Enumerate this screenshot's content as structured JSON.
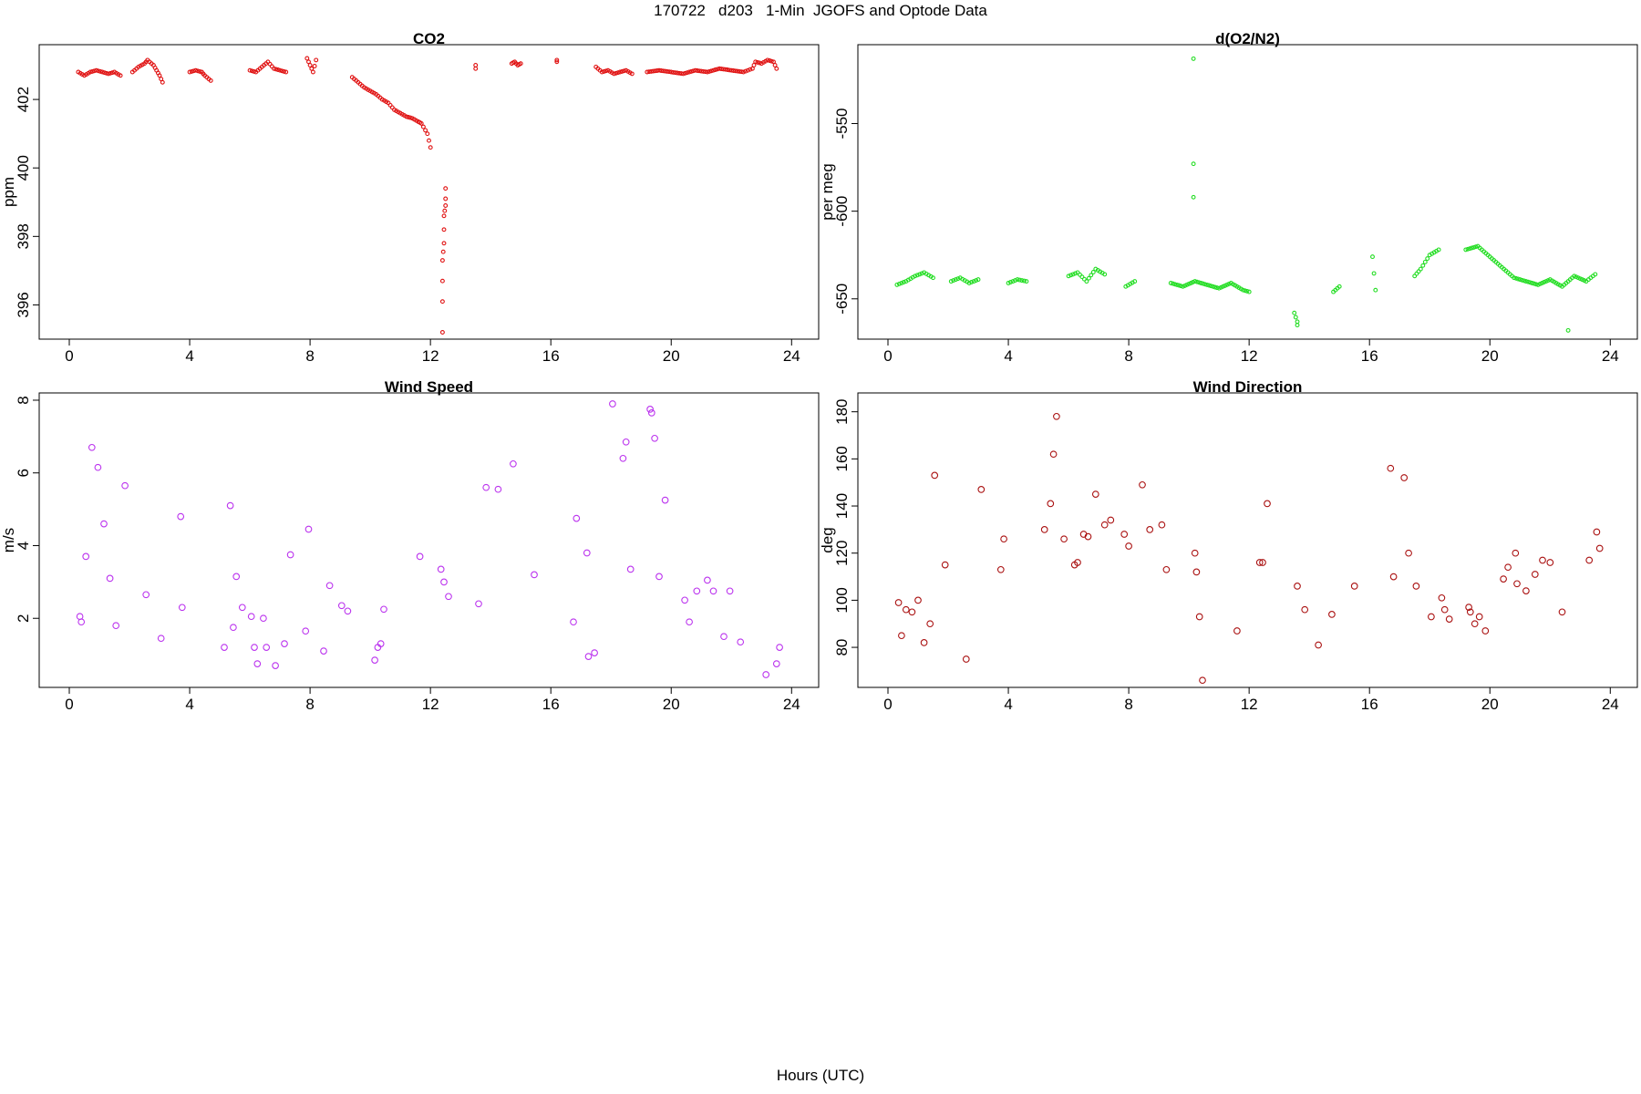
{
  "figure": {
    "title": "170722   d203   1-Min  JGOFS and Optode Data",
    "xlabel": "Hours (UTC)"
  },
  "chart_data": [
    {
      "id": "co2",
      "type": "scatter",
      "title": "CO2",
      "xlabel": "",
      "ylabel": "ppm",
      "xlim": [
        -1,
        24.9
      ],
      "ylim": [
        395.0,
        403.6
      ],
      "xticks": [
        0,
        4,
        8,
        12,
        16,
        20,
        24
      ],
      "yticks": [
        396,
        398,
        400,
        402
      ],
      "grid": false,
      "marker_color": "#e01010",
      "segments": [
        {
          "x": [
            0.3,
            0.5,
            0.7,
            0.9,
            1.1,
            1.3,
            1.5,
            1.7
          ],
          "y": [
            402.8,
            402.7,
            402.8,
            402.85,
            402.8,
            402.75,
            402.8,
            402.7
          ]
        },
        {
          "x": [
            2.1,
            2.3,
            2.5,
            2.6,
            2.8,
            2.9,
            3.0,
            3.1
          ],
          "y": [
            402.8,
            402.95,
            403.05,
            403.15,
            403.0,
            402.85,
            402.7,
            402.5
          ]
        },
        {
          "x": [
            4.0,
            4.2,
            4.4,
            4.5,
            4.7
          ],
          "y": [
            402.8,
            402.85,
            402.8,
            402.7,
            402.55
          ]
        },
        {
          "x": [
            6.0,
            6.2,
            6.4,
            6.6,
            6.8,
            7.0,
            7.2
          ],
          "y": [
            402.85,
            402.8,
            402.95,
            403.1,
            402.9,
            402.85,
            402.8
          ]
        },
        {
          "x": [
            7.9,
            8.0,
            8.1,
            8.2
          ],
          "y": [
            403.2,
            403.0,
            402.8,
            403.15
          ]
        },
        {
          "x": [
            9.4,
            9.6,
            9.8,
            10.0,
            10.2,
            10.4,
            10.6,
            10.8,
            11.0,
            11.2,
            11.4,
            11.6,
            11.7,
            11.9,
            12.0
          ],
          "y": [
            402.65,
            402.5,
            402.35,
            402.25,
            402.15,
            402.0,
            401.9,
            401.7,
            401.6,
            401.5,
            401.45,
            401.35,
            401.3,
            401.0,
            400.6
          ]
        },
        {
          "x": [
            12.4,
            12.4,
            12.4,
            12.4,
            12.45,
            12.45,
            12.45,
            12.5,
            12.5,
            12.5
          ],
          "y": [
            395.2,
            396.1,
            396.7,
            397.3,
            397.8,
            398.2,
            398.6,
            398.9,
            399.1,
            399.4
          ]
        },
        {
          "x": [
            13.5,
            13.5
          ],
          "y": [
            403.0,
            402.9
          ]
        },
        {
          "x": [
            14.7,
            14.8,
            14.9,
            15.0
          ],
          "y": [
            403.05,
            403.1,
            403.0,
            403.05
          ]
        },
        {
          "x": [
            16.2,
            16.2
          ],
          "y": [
            403.15,
            403.1
          ]
        },
        {
          "x": [
            17.5,
            17.7,
            17.9,
            18.1,
            18.3,
            18.5,
            18.7
          ],
          "y": [
            402.95,
            402.8,
            402.85,
            402.75,
            402.8,
            402.85,
            402.75
          ]
        },
        {
          "x": [
            19.2,
            19.6,
            20.0,
            20.4,
            20.8,
            21.2,
            21.6,
            22.0,
            22.4,
            22.7,
            22.8,
            23.0,
            23.2,
            23.4,
            23.5
          ],
          "y": [
            402.8,
            402.85,
            402.8,
            402.75,
            402.85,
            402.8,
            402.9,
            402.85,
            402.8,
            402.9,
            403.1,
            403.05,
            403.15,
            403.1,
            402.9
          ]
        }
      ]
    },
    {
      "id": "o2n2",
      "type": "scatter",
      "title": "d(O2/N2)",
      "xlabel": "",
      "ylabel": "per meg",
      "xlim": [
        -1,
        24.9
      ],
      "ylim": [
        -673,
        -505
      ],
      "xticks": [
        0,
        4,
        8,
        12,
        16,
        20,
        24
      ],
      "yticks": [
        -550,
        -600,
        -650
      ],
      "grid": false,
      "marker_color": "#22dd22",
      "segments": [
        {
          "x": [
            0.3,
            0.6,
            0.9,
            1.2,
            1.5
          ],
          "y": [
            -642,
            -640,
            -637,
            -635,
            -638
          ]
        },
        {
          "x": [
            2.1,
            2.4,
            2.7,
            3.0
          ],
          "y": [
            -640,
            -638,
            -641,
            -639
          ]
        },
        {
          "x": [
            4.0,
            4.3,
            4.6
          ],
          "y": [
            -641,
            -639,
            -640
          ]
        },
        {
          "x": [
            6.0,
            6.3,
            6.6,
            6.9,
            7.2
          ],
          "y": [
            -637,
            -635,
            -640,
            -633,
            -636
          ]
        },
        {
          "x": [
            7.9,
            8.2
          ],
          "y": [
            -643,
            -640
          ]
        },
        {
          "x": [
            9.4,
            9.8,
            10.2,
            10.6,
            11.0,
            11.4,
            11.8,
            12.0
          ],
          "y": [
            -641,
            -643,
            -640,
            -642,
            -644,
            -641,
            -645,
            -646
          ]
        },
        {
          "x": [
            13.5,
            13.6
          ],
          "y": [
            -658,
            -663
          ]
        },
        {
          "x": [
            14.8,
            15.0
          ],
          "y": [
            -646,
            -643
          ]
        },
        {
          "x": [
            16.1,
            16.2
          ],
          "y": [
            -626,
            -645
          ]
        },
        {
          "x": [
            17.5,
            17.7,
            18.0,
            18.3
          ],
          "y": [
            -637,
            -633,
            -625,
            -622
          ]
        },
        {
          "x": [
            19.2,
            19.6,
            20.0,
            20.4,
            20.8,
            21.2,
            21.6,
            22.0,
            22.4,
            22.8,
            23.2,
            23.5
          ],
          "y": [
            -622,
            -620,
            -626,
            -632,
            -638,
            -640,
            -642,
            -639,
            -643,
            -637,
            -640,
            -636
          ]
        }
      ],
      "outliers": {
        "x": [
          10.15,
          10.15,
          10.15,
          13.6,
          22.6
        ],
        "y": [
          -513,
          -573,
          -592,
          -665,
          -668
        ]
      }
    },
    {
      "id": "wind-speed",
      "type": "scatter",
      "title": "Wind Speed",
      "xlabel": "",
      "ylabel": "m/s",
      "xlim": [
        -1,
        24.9
      ],
      "ylim": [
        0.1,
        8.2
      ],
      "xticks": [
        0,
        4,
        8,
        12,
        16,
        20,
        24
      ],
      "yticks": [
        2,
        4,
        6,
        8
      ],
      "grid": false,
      "marker_color": "#bb33ee",
      "x": [
        0.35,
        0.4,
        0.55,
        0.75,
        0.95,
        1.15,
        1.35,
        1.55,
        1.85,
        2.55,
        3.05,
        3.7,
        3.75,
        5.15,
        5.35,
        5.45,
        5.55,
        5.75,
        6.05,
        6.15,
        6.25,
        6.45,
        6.55,
        6.85,
        7.15,
        7.35,
        7.85,
        7.95,
        8.45,
        8.65,
        9.05,
        9.25,
        10.15,
        10.25,
        10.35,
        10.45,
        11.65,
        12.35,
        12.45,
        12.6,
        13.6,
        13.85,
        14.25,
        14.75,
        15.45,
        16.75,
        16.85,
        17.2,
        17.25,
        17.45,
        18.05,
        18.4,
        18.5,
        18.65,
        19.3,
        19.35,
        19.45,
        19.6,
        19.8,
        20.45,
        20.6,
        20.85,
        21.2,
        21.4,
        21.75,
        21.95,
        22.3,
        23.15,
        23.5,
        23.6
      ],
      "y": [
        2.05,
        1.9,
        3.7,
        6.7,
        6.15,
        4.6,
        3.1,
        1.8,
        5.65,
        2.65,
        1.45,
        4.8,
        2.3,
        1.2,
        5.1,
        1.75,
        3.15,
        2.3,
        2.05,
        1.2,
        0.75,
        2.0,
        1.2,
        0.7,
        1.3,
        3.75,
        1.65,
        4.45,
        1.1,
        2.9,
        2.35,
        2.2,
        0.85,
        1.2,
        1.3,
        2.25,
        3.7,
        3.35,
        3.0,
        2.6,
        2.4,
        5.6,
        5.55,
        6.25,
        3.2,
        1.9,
        4.75,
        3.8,
        0.95,
        1.05,
        7.9,
        6.4,
        6.85,
        3.35,
        7.75,
        7.65,
        6.95,
        3.15,
        5.25,
        2.5,
        1.9,
        2.75,
        3.05,
        2.75,
        1.5,
        2.75,
        1.35,
        0.45,
        0.75,
        1.2
      ]
    },
    {
      "id": "wind-direction",
      "type": "scatter",
      "title": "Wind Direction",
      "xlabel": "",
      "ylabel": "deg",
      "xlim": [
        -1,
        24.9
      ],
      "ylim": [
        63,
        188
      ],
      "xticks": [
        0,
        4,
        8,
        12,
        16,
        20,
        24
      ],
      "yticks": [
        80,
        100,
        120,
        140,
        160,
        180
      ],
      "grid": false,
      "marker_color": "#aa1111",
      "x": [
        0.35,
        0.45,
        0.6,
        0.8,
        1.0,
        1.2,
        1.4,
        1.55,
        1.9,
        2.6,
        3.1,
        3.75,
        3.85,
        5.2,
        5.4,
        5.5,
        5.6,
        5.85,
        6.2,
        6.3,
        6.5,
        6.65,
        6.9,
        7.2,
        7.4,
        7.85,
        8.0,
        8.45,
        8.7,
        9.1,
        9.25,
        10.2,
        10.25,
        10.35,
        10.45,
        11.6,
        12.35,
        12.45,
        12.6,
        13.6,
        13.85,
        14.3,
        14.75,
        15.5,
        16.7,
        16.8,
        17.15,
        17.3,
        17.55,
        18.05,
        18.4,
        18.5,
        18.65,
        19.3,
        19.35,
        19.5,
        19.65,
        19.85,
        20.45,
        20.6,
        20.85,
        20.9,
        21.2,
        21.5,
        21.75,
        22.0,
        22.4,
        23.3,
        23.55,
        23.65
      ],
      "y": [
        99,
        85,
        96,
        95,
        100,
        82,
        90,
        153,
        115,
        75,
        147,
        113,
        126,
        130,
        141,
        162,
        178,
        126,
        115,
        116,
        128,
        127,
        145,
        132,
        134,
        128,
        123,
        149,
        130,
        132,
        113,
        120,
        112,
        93,
        66,
        87,
        116,
        116,
        141,
        106,
        96,
        81,
        94,
        106,
        156,
        110,
        152,
        120,
        106,
        93,
        101,
        96,
        92,
        97,
        95,
        90,
        93,
        87,
        109,
        114,
        120,
        107,
        104,
        111,
        117,
        116,
        95,
        117,
        129,
        122
      ]
    }
  ]
}
